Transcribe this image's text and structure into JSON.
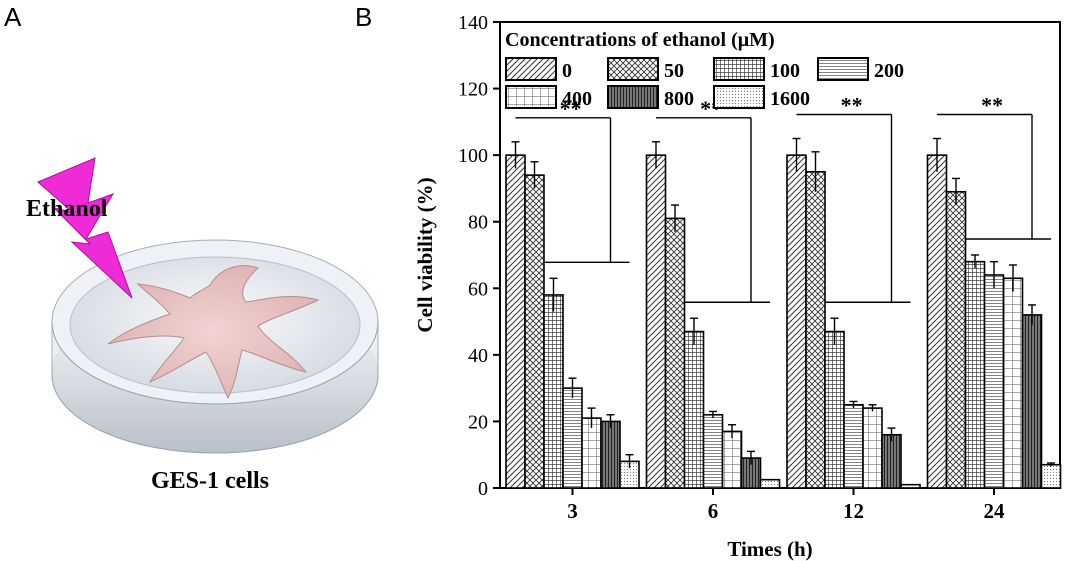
{
  "panel_a": {
    "letter": "A",
    "stimulus_label": "Ethanol",
    "cells_label": "GES-1 cells",
    "colors": {
      "lightning": "#ee2bd6",
      "dish": "#dfe3ea",
      "cell": "#ecc7c7"
    }
  },
  "panel_b": {
    "letter": "B"
  },
  "chart_data": {
    "type": "bar",
    "xlabel": "Times (h)",
    "ylabel": "Cell viability (%)",
    "ylim": [
      0,
      140
    ],
    "yticks": [
      0,
      20,
      40,
      60,
      80,
      100,
      120,
      140
    ],
    "categories": [
      "3",
      "6",
      "12",
      "24"
    ],
    "legend_title": "Concentrations of ethanol (μM)",
    "legend_position": "top",
    "grid": false,
    "significance_label": "**",
    "series": [
      {
        "name": "0",
        "values": [
          100,
          100,
          100,
          100
        ],
        "errors": [
          4,
          4,
          5,
          5
        ],
        "pattern": "diagonal"
      },
      {
        "name": "50",
        "values": [
          94,
          81,
          95,
          89
        ],
        "errors": [
          4,
          4,
          6,
          4
        ],
        "pattern": "crosshatch"
      },
      {
        "name": "100",
        "values": [
          58,
          47,
          47,
          68
        ],
        "errors": [
          5,
          4,
          4,
          2
        ],
        "pattern": "grid"
      },
      {
        "name": "200",
        "values": [
          30,
          22,
          25,
          64
        ],
        "errors": [
          3,
          1,
          1,
          4
        ],
        "pattern": "hlines"
      },
      {
        "name": "400",
        "values": [
          21,
          17,
          24,
          63
        ],
        "errors": [
          3,
          2,
          1,
          4
        ],
        "pattern": "squares"
      },
      {
        "name": "800",
        "values": [
          20,
          9,
          16,
          52
        ],
        "errors": [
          2,
          2,
          2,
          3
        ],
        "pattern": "vlines"
      },
      {
        "name": "1600",
        "values": [
          8,
          2.5,
          1,
          7
        ],
        "errors": [
          2,
          0,
          0,
          0.5
        ],
        "pattern": "dots"
      }
    ]
  }
}
